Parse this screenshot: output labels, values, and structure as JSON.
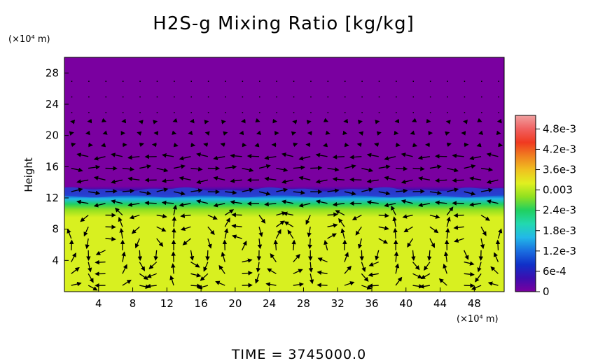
{
  "chart_data": {
    "type": "heatmap",
    "title": "H2S-g Mixing Ratio [kg/kg]",
    "ylabel": "Height",
    "y_unit": "(×10⁴ m)",
    "x_unit": "(×10⁴ m)",
    "footer": "TIME = 3745000.0",
    "xlim": [
      0,
      51.5
    ],
    "ylim": [
      0,
      30
    ],
    "x_ticks": [
      4,
      8,
      12,
      16,
      20,
      24,
      28,
      32,
      36,
      40,
      44,
      48
    ],
    "y_ticks": [
      4,
      8,
      12,
      16,
      20,
      24,
      28
    ],
    "colorbar": {
      "range": [
        0,
        0.0052
      ],
      "ticks": [
        {
          "value": 0,
          "label": "0"
        },
        {
          "value": 0.0006,
          "label": "6e-4"
        },
        {
          "value": 0.0012,
          "label": "1.2e-3"
        },
        {
          "value": 0.0018,
          "label": "1.8e-3"
        },
        {
          "value": 0.0024,
          "label": "2.4e-3"
        },
        {
          "value": 0.003,
          "label": "0.003"
        },
        {
          "value": 0.0036,
          "label": "3.6e-3"
        },
        {
          "value": 0.0042,
          "label": "4.2e-3"
        },
        {
          "value": 0.0048,
          "label": "4.8e-3"
        }
      ],
      "colors": [
        "#7a00a0",
        "#3b0fb0",
        "#1030c8",
        "#1a6ee0",
        "#22b8e8",
        "#22d8b0",
        "#20d060",
        "#90e020",
        "#e0f020",
        "#f0c020",
        "#f08020",
        "#f03a20",
        "#f06060",
        "#f0a0a0"
      ]
    },
    "field_profile": [
      {
        "height": 0,
        "value": 0.0033
      },
      {
        "height": 9.5,
        "value": 0.0033
      },
      {
        "height": 10.5,
        "value": 0.0028
      },
      {
        "height": 11.2,
        "value": 0.0022
      },
      {
        "height": 11.9,
        "value": 0.0014
      },
      {
        "height": 12.5,
        "value": 0.0008
      },
      {
        "height": 13.0,
        "value": 0.0002
      },
      {
        "height": 13.5,
        "value": 0
      },
      {
        "height": 30,
        "value": 0
      }
    ],
    "vector_grid": {
      "dx": 2,
      "dy": 1.5
    },
    "colors": {
      "field_low": "#7a00a0",
      "field_high": "#d8f020",
      "vector": "#000000"
    }
  }
}
